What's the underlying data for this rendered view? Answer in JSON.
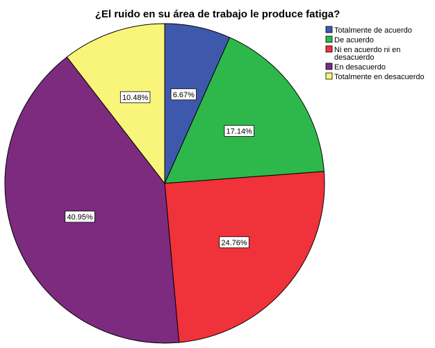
{
  "chart_data": {
    "type": "pie",
    "title": "¿El ruido en su área de trabajo le produce fatiga?",
    "categories": [
      "Totalmente de acuerdo",
      "De acuerdo",
      "Ni en acuerdo ni en desacuerdo",
      "En desacuerdo",
      "Totalmente en desacuerdo"
    ],
    "legend_lines": [
      [
        "Totalmente de acuerdo"
      ],
      [
        "De acuerdo"
      ],
      [
        "Ni en acuerdo ni en",
        "desacuerdo"
      ],
      [
        "En desacuerdo"
      ],
      [
        "Totalmente en desacuerdo"
      ]
    ],
    "values": [
      6.67,
      17.14,
      24.76,
      40.95,
      10.48
    ],
    "labels": [
      "6.67%",
      "17.14%",
      "24.76%",
      "40.95%",
      "10.48%"
    ],
    "colors": [
      "#3e59ac",
      "#2eb84b",
      "#f0323a",
      "#7c2b7f",
      "#f9f57a"
    ],
    "start_angle": "12 o'clock, clockwise",
    "legend_position": "top-right"
  }
}
